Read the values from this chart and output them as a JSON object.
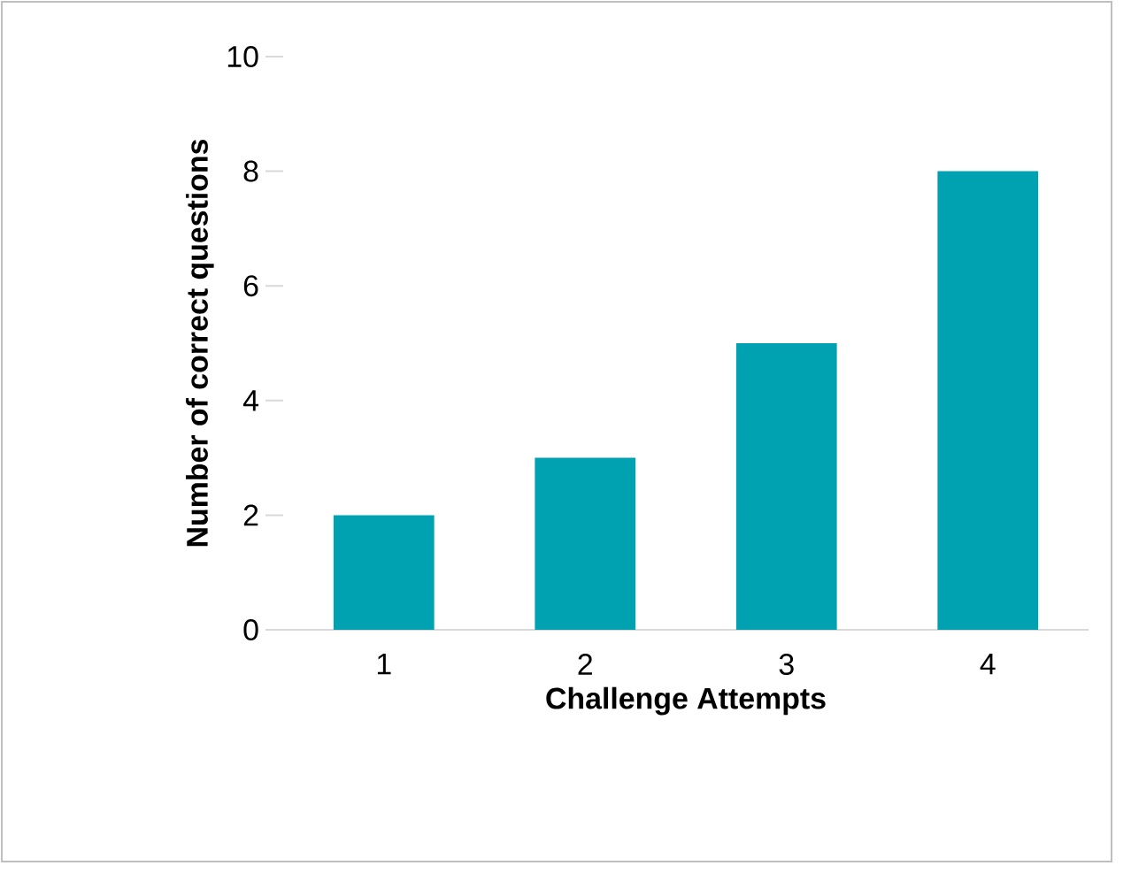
{
  "chart_data": {
    "type": "bar",
    "xlabel": "Challenge Attempts",
    "ylabel": "Number of correct questions",
    "categories": [
      "1",
      "2",
      "3",
      "4"
    ],
    "series": [
      {
        "color": "#00a2b1",
        "values": [
          2,
          3,
          5,
          8
        ]
      }
    ],
    "ylim": [
      0,
      10
    ],
    "yticks": [
      0,
      2,
      4,
      6,
      8,
      10
    ]
  }
}
